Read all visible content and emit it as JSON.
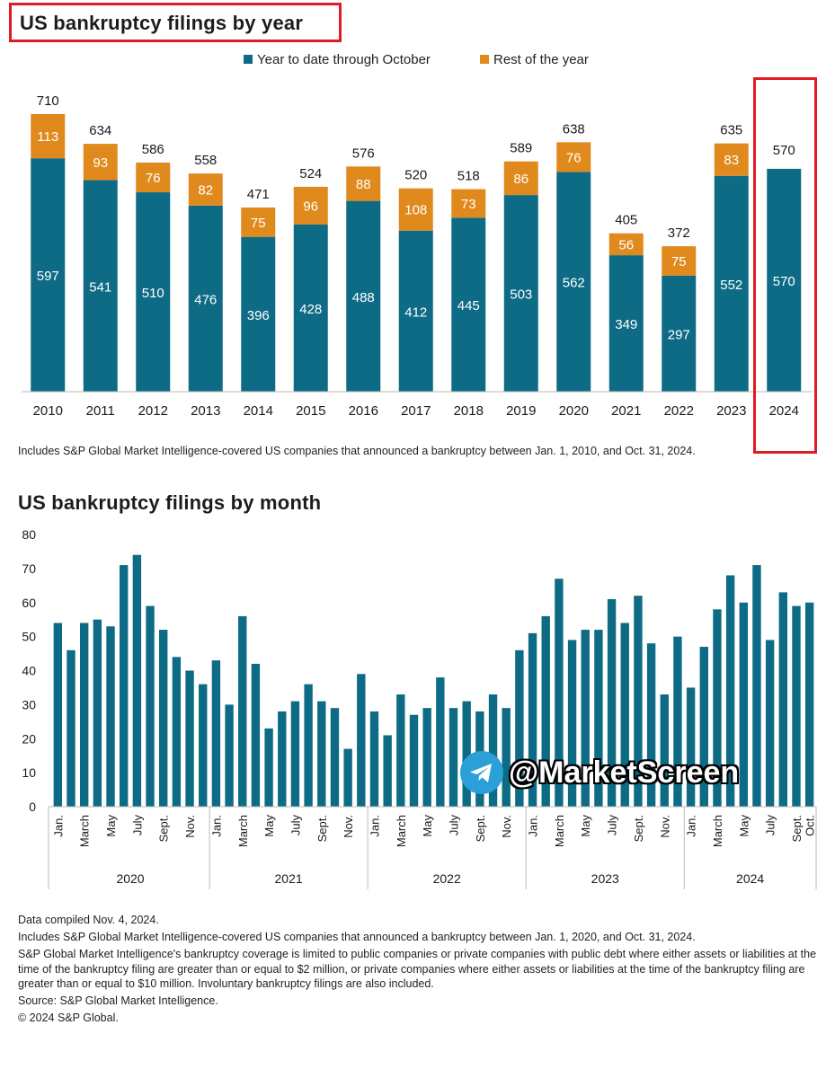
{
  "chart_data": [
    {
      "type": "bar",
      "stacked": true,
      "title": "US bankruptcy filings by year",
      "categories": [
        "2010",
        "2011",
        "2012",
        "2013",
        "2014",
        "2015",
        "2016",
        "2017",
        "2018",
        "2019",
        "2020",
        "2021",
        "2022",
        "2023",
        "2024"
      ],
      "series": [
        {
          "name": "Year to date through October",
          "values": [
            597,
            541,
            510,
            476,
            396,
            428,
            488,
            412,
            445,
            503,
            562,
            349,
            297,
            552,
            570
          ]
        },
        {
          "name": "Rest of the year",
          "values": [
            113,
            93,
            76,
            82,
            75,
            96,
            88,
            108,
            73,
            86,
            76,
            56,
            75,
            83,
            null
          ]
        }
      ],
      "totals": [
        710,
        634,
        586,
        558,
        471,
        524,
        576,
        520,
        518,
        589,
        638,
        405,
        372,
        635,
        570
      ],
      "legend": "top",
      "grid": false,
      "note": "Includes S&P Global Market Intelligence-covered US companies that announced a bankruptcy between Jan. 1, 2010, and Oct. 31, 2024."
    },
    {
      "type": "bar",
      "title": "US bankruptcy filings by month",
      "values": [
        54,
        46,
        54,
        55,
        53,
        71,
        74,
        59,
        52,
        44,
        40,
        36,
        43,
        30,
        56,
        42,
        23,
        28,
        31,
        36,
        31,
        29,
        17,
        39,
        28,
        21,
        33,
        27,
        29,
        38,
        29,
        31,
        28,
        33,
        29,
        46,
        51,
        56,
        67,
        49,
        52,
        52,
        61,
        54,
        62,
        48,
        33,
        50,
        35,
        47,
        58,
        68,
        60,
        71,
        49,
        63,
        59,
        60
      ],
      "ylim": [
        0,
        80
      ],
      "yticks": [
        0,
        10,
        20,
        30,
        40,
        50,
        60,
        70,
        80
      ],
      "month_labels": [
        {
          "i": 0,
          "label": "Jan."
        },
        {
          "i": 2,
          "label": "March"
        },
        {
          "i": 4,
          "label": "May"
        },
        {
          "i": 6,
          "label": "July"
        },
        {
          "i": 8,
          "label": "Sept."
        },
        {
          "i": 10,
          "label": "Nov."
        },
        {
          "i": 12,
          "label": "Jan."
        },
        {
          "i": 14,
          "label": "March"
        },
        {
          "i": 16,
          "label": "May"
        },
        {
          "i": 18,
          "label": "July"
        },
        {
          "i": 20,
          "label": "Sept."
        },
        {
          "i": 22,
          "label": "Nov."
        },
        {
          "i": 24,
          "label": "Jan."
        },
        {
          "i": 26,
          "label": "March"
        },
        {
          "i": 28,
          "label": "May"
        },
        {
          "i": 30,
          "label": "July"
        },
        {
          "i": 32,
          "label": "Sept."
        },
        {
          "i": 34,
          "label": "Nov."
        },
        {
          "i": 36,
          "label": "Jan."
        },
        {
          "i": 38,
          "label": "March"
        },
        {
          "i": 40,
          "label": "May"
        },
        {
          "i": 42,
          "label": "July"
        },
        {
          "i": 44,
          "label": "Sept."
        },
        {
          "i": 46,
          "label": "Nov."
        },
        {
          "i": 48,
          "label": "Jan."
        },
        {
          "i": 50,
          "label": "March"
        },
        {
          "i": 52,
          "label": "May"
        },
        {
          "i": 54,
          "label": "July"
        },
        {
          "i": 56,
          "label": "Sept."
        },
        {
          "i": 57,
          "label": "Oct."
        }
      ],
      "years": [
        "2020",
        "2021",
        "2022",
        "2023",
        "2024"
      ]
    }
  ],
  "colors": {
    "primary": "#0e6b85",
    "secondary": "#e08a1e",
    "highlight": "#e01b24",
    "watermark": "#2a9fd8"
  },
  "watermark": {
    "text": "@MarketScreen",
    "icon": "telegram-icon"
  },
  "footer": {
    "compiled": "Data compiled Nov. 4, 2024.",
    "includes": "Includes S&P Global Market Intelligence-covered US companies that announced a bankruptcy between Jan. 1, 2020, and Oct. 31, 2024.",
    "coverage": "S&P Global Market Intelligence's bankruptcy coverage is limited to public companies or private companies with public debt where either assets or liabilities at the time of the bankruptcy filing are greater than or equal to $2 million, or private companies where either assets or liabilities at the time of the bankruptcy filing are greater than or equal to $10 million. Involuntary bankruptcy filings are also included.",
    "source": "Source: S&P Global Market Intelligence.",
    "copyright": "© 2024 S&P Global."
  }
}
